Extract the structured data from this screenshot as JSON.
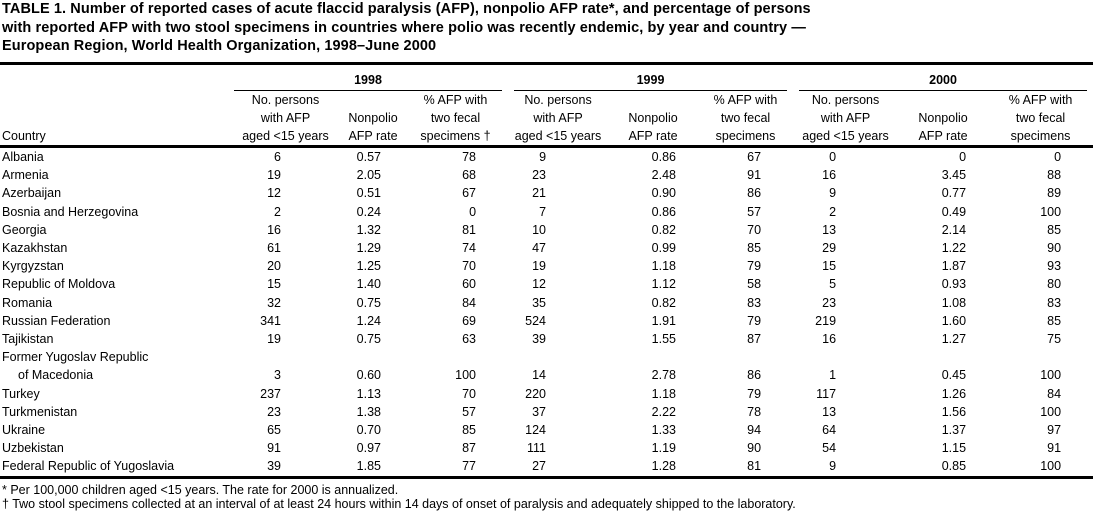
{
  "title": [
    "TABLE 1. Number of reported cases of acute flaccid paralysis (AFP), nonpolio AFP rate*, and percentage of persons",
    "with reported AFP with two stool specimens in countries where polio was recently endemic, by year and country —",
    "European Region, World Health Organization, 1998–June 2000"
  ],
  "years": [
    "1998",
    "1999",
    "2000"
  ],
  "headers": {
    "country": "Country",
    "no_persons": [
      "No. persons",
      "with AFP",
      "aged <15 years"
    ],
    "rate": [
      "Nonpolio",
      "AFP rate"
    ],
    "pct_1998": [
      "% AFP with",
      "two fecal",
      "specimens †"
    ],
    "pct": [
      "% AFP with",
      "two fecal",
      "specimens"
    ]
  },
  "rows": [
    {
      "country": "Albania",
      "v": [
        "6",
        "0.57",
        "78",
        "9",
        "0.86",
        "67",
        "0",
        "0",
        "0"
      ]
    },
    {
      "country": "Armenia",
      "v": [
        "19",
        "2.05",
        "68",
        "23",
        "2.48",
        "91",
        "16",
        "3.45",
        "88"
      ]
    },
    {
      "country": "Azerbaijan",
      "v": [
        "12",
        "0.51",
        "67",
        "21",
        "0.90",
        "86",
        "9",
        "0.77",
        "89"
      ]
    },
    {
      "country": "Bosnia and Herzegovina",
      "v": [
        "2",
        "0.24",
        "0",
        "7",
        "0.86",
        "57",
        "2",
        "0.49",
        "100"
      ]
    },
    {
      "country": "Georgia",
      "v": [
        "16",
        "1.32",
        "81",
        "10",
        "0.82",
        "70",
        "13",
        "2.14",
        "85"
      ]
    },
    {
      "country": "Kazakhstan",
      "v": [
        "61",
        "1.29",
        "74",
        "47",
        "0.99",
        "85",
        "29",
        "1.22",
        "90"
      ]
    },
    {
      "country": "Kyrgyzstan",
      "v": [
        "20",
        "1.25",
        "70",
        "19",
        "1.18",
        "79",
        "15",
        "1.87",
        "93"
      ]
    },
    {
      "country": "Republic of Moldova",
      "v": [
        "15",
        "1.40",
        "60",
        "12",
        "1.12",
        "58",
        "5",
        "0.93",
        "80"
      ]
    },
    {
      "country": "Romania",
      "v": [
        "32",
        "0.75",
        "84",
        "35",
        "0.82",
        "83",
        "23",
        "1.08",
        "83"
      ]
    },
    {
      "country": "Russian Federation",
      "v": [
        "341",
        "1.24",
        "69",
        "524",
        "1.91",
        "79",
        "219",
        "1.60",
        "85"
      ]
    },
    {
      "country": "Tajikistan",
      "v": [
        "19",
        "0.75",
        "63",
        "39",
        "1.55",
        "87",
        "16",
        "1.27",
        "75"
      ]
    },
    {
      "country": "Former Yugoslav Republic",
      "country2": "of Macedonia",
      "v": [
        "3",
        "0.60",
        "100",
        "14",
        "2.78",
        "86",
        "1",
        "0.45",
        "100"
      ]
    },
    {
      "country": "Turkey",
      "v": [
        "237",
        "1.13",
        "70",
        "220",
        "1.18",
        "79",
        "117",
        "1.26",
        "84"
      ]
    },
    {
      "country": "Turkmenistan",
      "v": [
        "23",
        "1.38",
        "57",
        "37",
        "2.22",
        "78",
        "13",
        "1.56",
        "100"
      ]
    },
    {
      "country": "Ukraine",
      "v": [
        "65",
        "0.70",
        "85",
        "124",
        "1.33",
        "94",
        "64",
        "1.37",
        "97"
      ]
    },
    {
      "country": "Uzbekistan",
      "v": [
        "91",
        "0.97",
        "87",
        "111",
        "1.19",
        "90",
        "54",
        "1.15",
        "91"
      ]
    },
    {
      "country": "Federal Republic of Yugoslavia",
      "v": [
        "39",
        "1.85",
        "77",
        "27",
        "1.28",
        "81",
        "9",
        "0.85",
        "100"
      ]
    }
  ],
  "footnotes": [
    "* Per 100,000 children aged <15 years. The rate for 2000 is annualized.",
    "† Two stool specimens collected at an interval of at least 24 hours within 14 days of onset of paralysis and adequately shipped to the laboratory."
  ]
}
